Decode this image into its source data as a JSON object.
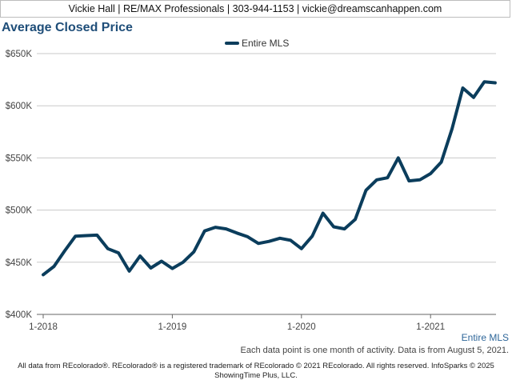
{
  "header": {
    "contact": "Vickie Hall | RE/MAX Professionals | 303-944-1153 | vickie@dreamscanhappen.com"
  },
  "chart_data": {
    "type": "line",
    "title": "Average Closed Price",
    "xlabel": "",
    "ylabel": "",
    "legend_position": "top-center",
    "grid": true,
    "ylim": [
      400000,
      650000
    ],
    "y_ticks": [
      400000,
      450000,
      500000,
      550000,
      600000,
      650000
    ],
    "y_tick_labels": [
      "$400K",
      "$450K",
      "$500K",
      "$550K",
      "$600K",
      "$650K"
    ],
    "x_ticks": [
      "2018-01",
      "2019-01",
      "2020-01",
      "2021-01"
    ],
    "x_tick_labels": [
      "1-2018",
      "1-2019",
      "1-2020",
      "1-2021"
    ],
    "series": [
      {
        "name": "Entire MLS",
        "color": "#0b3d5c",
        "x": [
          "2018-01",
          "2018-02",
          "2018-03",
          "2018-04",
          "2018-05",
          "2018-06",
          "2018-07",
          "2018-08",
          "2018-09",
          "2018-10",
          "2018-11",
          "2018-12",
          "2019-01",
          "2019-02",
          "2019-03",
          "2019-04",
          "2019-05",
          "2019-06",
          "2019-07",
          "2019-08",
          "2019-09",
          "2019-10",
          "2019-11",
          "2019-12",
          "2020-01",
          "2020-02",
          "2020-03",
          "2020-04",
          "2020-05",
          "2020-06",
          "2020-07",
          "2020-08",
          "2020-09",
          "2020-10",
          "2020-11",
          "2020-12",
          "2021-01",
          "2021-02",
          "2021-03",
          "2021-04",
          "2021-05",
          "2021-06",
          "2021-07"
        ],
        "values": [
          438000,
          446000,
          461000,
          475000,
          475500,
          476000,
          463000,
          459000,
          441500,
          456000,
          444500,
          451000,
          444000,
          450000,
          460000,
          480000,
          483500,
          482000,
          478000,
          474500,
          468000,
          470000,
          473000,
          471000,
          463000,
          475000,
          497000,
          484000,
          482000,
          491000,
          519000,
          529000,
          531000,
          550000,
          528000,
          529000,
          535000,
          546000,
          578000,
          617000,
          608000,
          623000,
          622000
        ]
      }
    ]
  },
  "right_label": "Entire MLS",
  "footnote": "Each data point is one month of activity. Data is from August 5, 2021.",
  "source_lines": [
    "All data from REcolorado®. REcolorado® is a registered trademark of REcolorado © 2021 REcolorado. All rights reserved. InfoSparks © 2025",
    "ShowingTime Plus, LLC."
  ]
}
